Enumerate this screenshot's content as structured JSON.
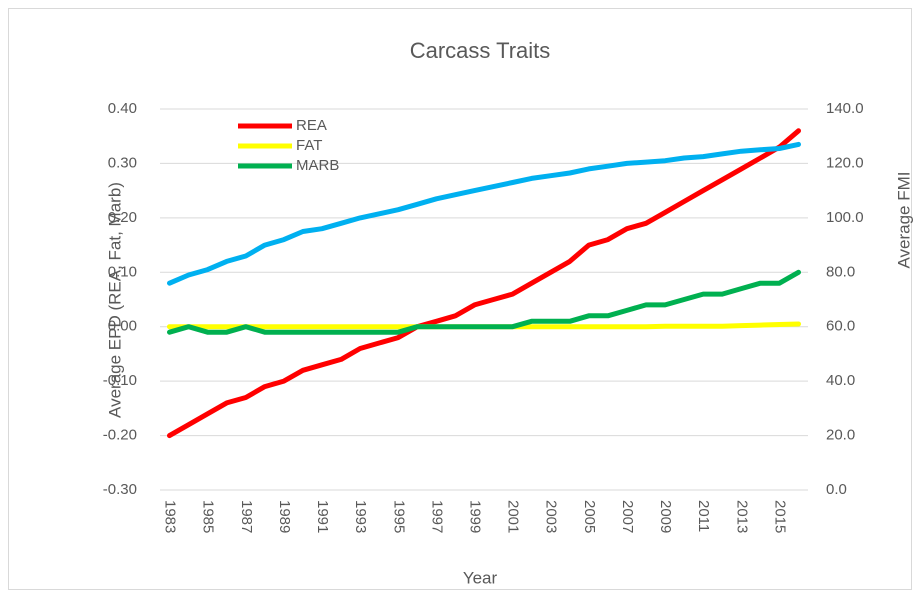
{
  "chart_data": {
    "type": "line",
    "title": "Carcass Traits",
    "x_label": "Year",
    "y_label": "Average EPD (REA, Fat, Marb)",
    "y2_label": "Average FMI",
    "categories": [
      "1983",
      null,
      "1985",
      null,
      "1987",
      null,
      "1989",
      null,
      "1991",
      null,
      "1993",
      null,
      "1995",
      null,
      "1997",
      null,
      "1999",
      null,
      "2001",
      null,
      "2003",
      null,
      "2005",
      null,
      "2007",
      null,
      "2009",
      null,
      "2011",
      null,
      "2013",
      null,
      "2015",
      null
    ],
    "ylim": [
      -0.3,
      0.4
    ],
    "yticks": [
      {
        "value": -0.3,
        "label": "-0.30"
      },
      {
        "value": -0.2,
        "label": "-0.20"
      },
      {
        "value": -0.1,
        "label": "-0.10"
      },
      {
        "value": 0,
        "label": "0.00"
      },
      {
        "value": 0.1,
        "label": "0.10"
      },
      {
        "value": 0.2,
        "label": "0.20"
      },
      {
        "value": 0.3,
        "label": "0.30"
      },
      {
        "value": 0.4,
        "label": "0.40"
      }
    ],
    "y2lim": [
      0,
      140
    ],
    "y2ticks": [
      {
        "value": 0,
        "label": "0.0"
      },
      {
        "value": 20,
        "label": "20.0"
      },
      {
        "value": 40,
        "label": "40.0"
      },
      {
        "value": 60,
        "label": "60.0"
      },
      {
        "value": 80,
        "label": "80.0"
      },
      {
        "value": 100,
        "label": "100.0"
      },
      {
        "value": 120,
        "label": "120.0"
      },
      {
        "value": 140,
        "label": "140.0"
      }
    ],
    "grid": true,
    "legend": "upper left",
    "series": [
      {
        "name": "REA",
        "color": "#ff0000",
        "values": [
          -0.2,
          -0.18,
          -0.16,
          -0.14,
          -0.13,
          -0.11,
          -0.1,
          -0.08,
          -0.07,
          -0.06,
          -0.04,
          -0.03,
          -0.02,
          0.0,
          0.01,
          0.02,
          0.04,
          0.05,
          0.06,
          0.08,
          0.1,
          0.12,
          0.15,
          0.16,
          0.18,
          0.19,
          0.21,
          0.23,
          0.25,
          0.27,
          0.29,
          0.31,
          0.33,
          0.36
        ]
      },
      {
        "name": "FAT",
        "color": "#ffff00",
        "values": [
          0.0,
          0.0,
          0.0,
          0.0,
          0.0,
          0.0,
          0.0,
          0.0,
          0.0,
          0.0,
          0.0,
          0.0,
          0.0,
          0.0,
          0.0,
          0.0,
          0.0,
          0.0,
          0.0,
          0.0,
          0.0,
          0.0,
          0.0,
          0.0,
          0.0,
          0.0,
          0.001,
          0.001,
          0.001,
          0.001,
          0.002,
          0.003,
          0.004,
          0.005
        ]
      },
      {
        "name": "MARB",
        "color": "#00b050",
        "values": [
          -0.01,
          0.0,
          -0.01,
          -0.01,
          0.0,
          -0.01,
          -0.01,
          -0.01,
          -0.01,
          -0.01,
          -0.01,
          -0.01,
          -0.01,
          0.0,
          0.0,
          0.0,
          0.0,
          0.0,
          0.0,
          0.01,
          0.01,
          0.01,
          0.02,
          0.02,
          0.03,
          0.04,
          0.04,
          0.05,
          0.06,
          0.06,
          0.07,
          0.08,
          0.08,
          0.1
        ]
      },
      {
        "color": "#00b0f0",
        "axis": "y2",
        "values": [
          76,
          79,
          81,
          84,
          86,
          90,
          92,
          95,
          96,
          98,
          100,
          101.5,
          103,
          105,
          107,
          108.5,
          110,
          111.5,
          113,
          114.5,
          115.5,
          116.5,
          118,
          119,
          120,
          120.5,
          121,
          122,
          122.5,
          123.5,
          124.5,
          125,
          125.5,
          127
        ]
      }
    ]
  }
}
